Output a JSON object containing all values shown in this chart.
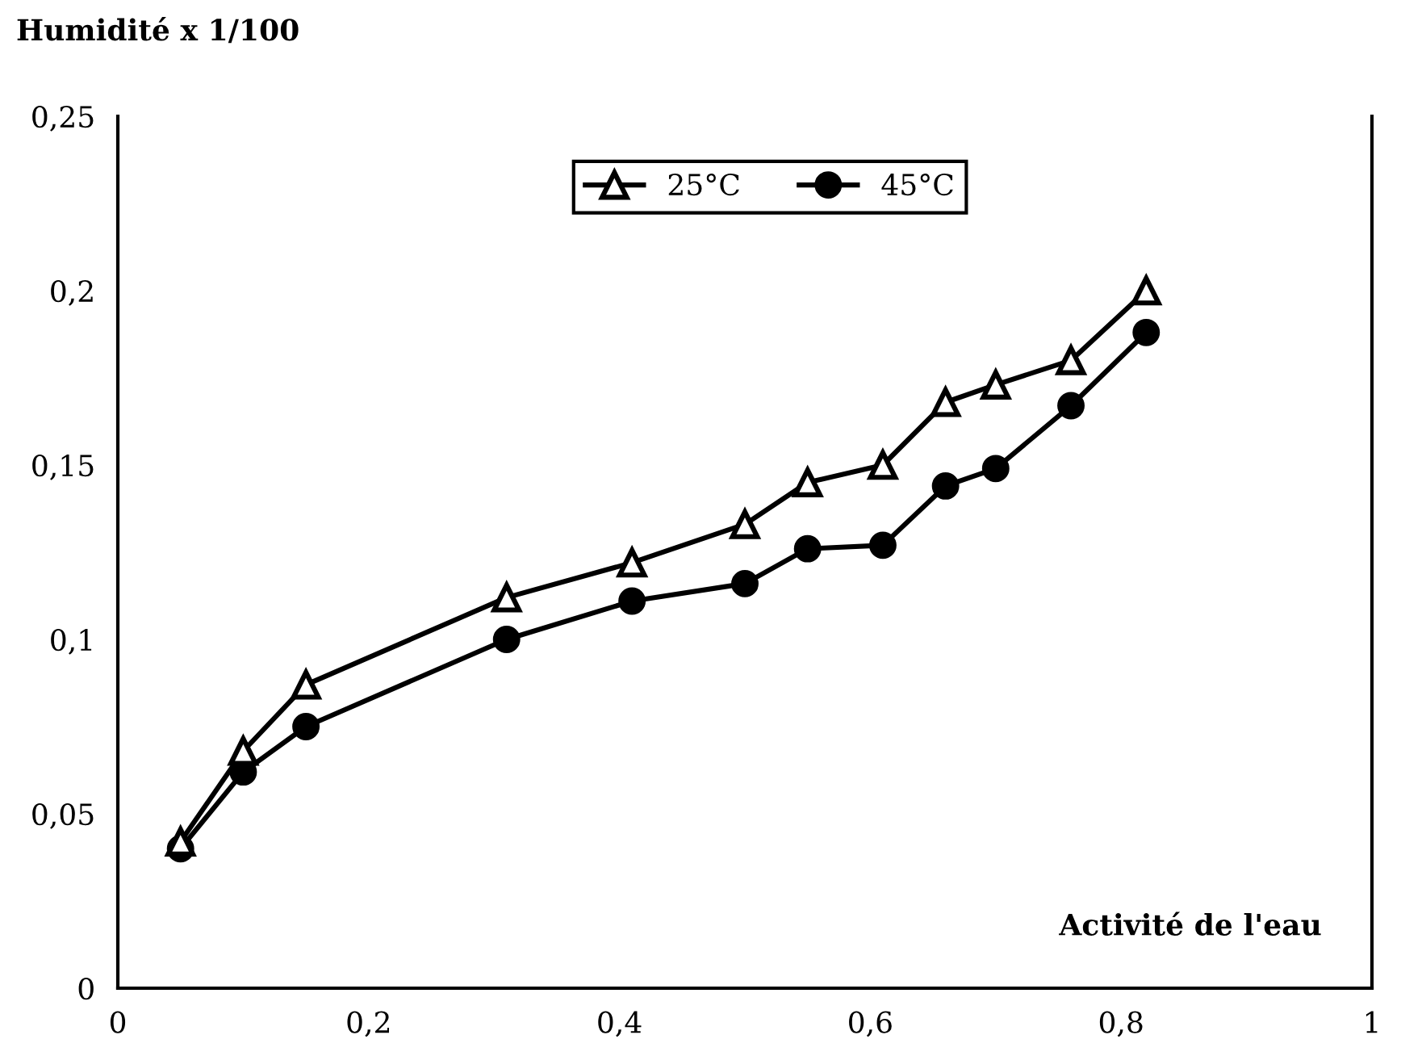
{
  "chart_data": {
    "type": "line",
    "ylabel": "Humidité x 1/100",
    "xlabel": "Activité de l'eau",
    "x": [
      0.05,
      0.1,
      0.15,
      0.31,
      0.41,
      0.5,
      0.55,
      0.61,
      0.66,
      0.7,
      0.76,
      0.82
    ],
    "series": [
      {
        "name": "25°C",
        "color": "#000000",
        "marker": "triangle",
        "values": [
          0.042,
          0.068,
          0.087,
          0.112,
          0.122,
          0.133,
          0.145,
          0.15,
          0.168,
          0.173,
          0.18,
          0.2
        ]
      },
      {
        "name": "45°C",
        "color": "#000000",
        "marker": "circle",
        "values": [
          0.04,
          0.062,
          0.075,
          0.1,
          0.111,
          0.116,
          0.126,
          0.127,
          0.144,
          0.149,
          0.167,
          0.188
        ]
      }
    ],
    "xlim": [
      0,
      1
    ],
    "ylim": [
      0,
      0.25
    ],
    "xticks": [
      0,
      {
        "value": 0.2,
        "label": "0,2"
      },
      {
        "value": 0.4,
        "label": "0,4"
      },
      {
        "value": 0.6,
        "label": "0,6"
      },
      {
        "value": 0.8,
        "label": "0,8"
      },
      1
    ],
    "yticks": [
      0,
      {
        "value": 0.05,
        "label": "0,05"
      },
      {
        "value": 0.1,
        "label": "0,1"
      },
      {
        "value": 0.15,
        "label": "0,15"
      },
      {
        "value": 0.2,
        "label": "0,2"
      },
      {
        "value": 0.25,
        "label": "0,25"
      }
    ],
    "grid": false,
    "legend": "top",
    "line_style": "solid"
  }
}
